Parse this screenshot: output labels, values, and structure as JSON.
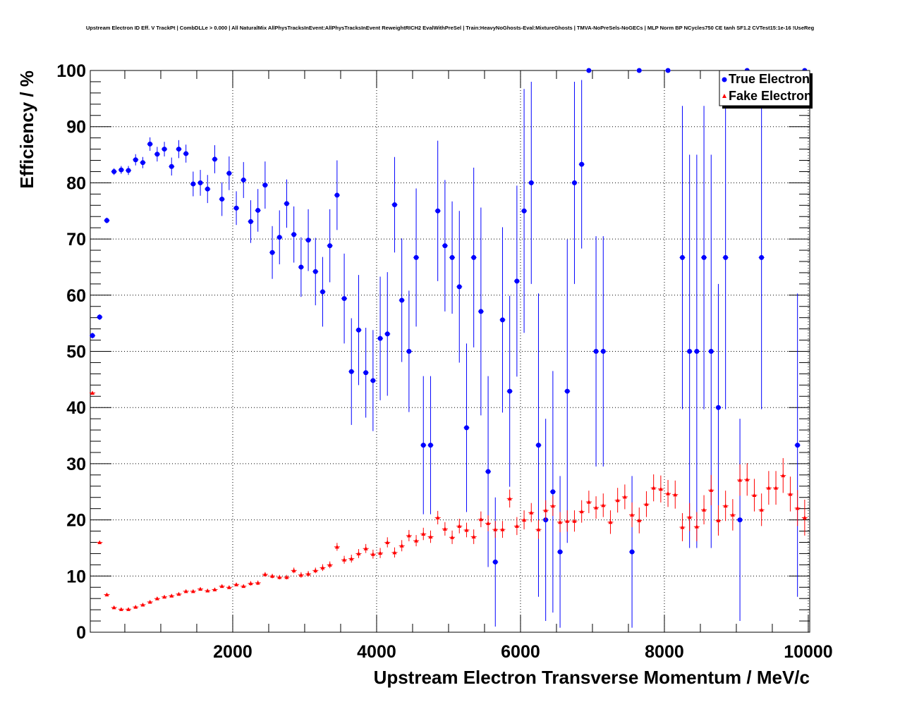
{
  "chart_data": {
    "type": "scatter",
    "title": "Upstream Electron ID Eff. V TrackPt | CombDLLe > 0.000 | All NaturalMix AllPhysTracksInEvent:AllPhysTracksInEvent ReweightRICH2 EvalWithPreSel | Train:HeavyNoGhosts-Eval:MixtureGhosts | TMVA-NoPreSels-NoGECs | MLP Norm BP NCycles750 CE tanh SF1.2 CVTest15:1e-16 !UseReg",
    "xlabel": "Upstream Electron Transverse Momentum / MeV/c",
    "ylabel": "Efficiency / %",
    "xlim": [
      20,
      10020
    ],
    "ylim": [
      0,
      100
    ],
    "xticks": [
      "2000",
      "4000",
      "6000",
      "8000",
      "10000"
    ],
    "yticks": [
      "0",
      "10",
      "20",
      "30",
      "40",
      "50",
      "60",
      "70",
      "80",
      "90",
      "100"
    ],
    "grid": true,
    "legend_position": "top-right",
    "series": [
      {
        "name": "True Electron",
        "color": "#0000ff",
        "marker": "circle",
        "x": [
          50,
          150,
          250,
          350,
          450,
          550,
          650,
          750,
          850,
          950,
          1050,
          1150,
          1250,
          1350,
          1450,
          1550,
          1650,
          1750,
          1850,
          1950,
          2050,
          2150,
          2250,
          2350,
          2450,
          2550,
          2650,
          2750,
          2850,
          2950,
          3050,
          3150,
          3250,
          3350,
          3450,
          3550,
          3650,
          3750,
          3850,
          3950,
          4050,
          4150,
          4250,
          4350,
          4450,
          4550,
          4650,
          4750,
          4850,
          4950,
          5050,
          5150,
          5250,
          5350,
          5450,
          5550,
          5650,
          5750,
          5850,
          5950,
          6050,
          6150,
          6250,
          6350,
          6450,
          6550,
          6650,
          6750,
          6850,
          6950,
          7050,
          7150,
          7550,
          7650,
          8050,
          8250,
          8350,
          8450,
          8550,
          8650,
          8750,
          8850,
          9050,
          9150,
          9350,
          9850,
          9950
        ],
        "y": [
          52.8,
          56.1,
          73.3,
          82.0,
          82.3,
          82.2,
          84.1,
          83.6,
          86.9,
          85.1,
          86.0,
          82.9,
          86.0,
          85.2,
          79.8,
          80.0,
          78.9,
          84.2,
          77.1,
          81.7,
          75.5,
          80.5,
          73.1,
          75.1,
          79.6,
          67.6,
          70.3,
          76.3,
          70.8,
          65.0,
          69.8,
          64.2,
          60.6,
          68.8,
          77.8,
          59.4,
          46.4,
          53.8,
          46.2,
          44.8,
          52.3,
          53.1,
          76.1,
          59.1,
          50.0,
          66.7,
          33.3,
          33.3,
          75.0,
          68.8,
          66.7,
          61.5,
          36.4,
          66.7,
          57.1,
          28.6,
          12.5,
          55.6,
          42.9,
          62.5,
          75.0,
          80.0,
          33.3,
          20.0,
          25.0,
          14.3,
          42.9,
          80.0,
          83.3,
          100,
          50.0,
          50.0,
          14.3,
          100,
          100,
          66.7,
          50.0,
          50.0,
          66.7,
          50.0,
          40.0,
          66.7,
          20.0,
          100,
          66.7,
          33.3,
          100
        ],
        "err": [
          0.5,
          0.5,
          0.5,
          0.6,
          0.7,
          0.8,
          1,
          1,
          1.2,
          1.3,
          1.3,
          1.6,
          1.6,
          1.6,
          2.2,
          2.3,
          2.5,
          2.5,
          3,
          3,
          3,
          3.2,
          3.8,
          3.8,
          4.2,
          4.7,
          4.8,
          4.3,
          5,
          5.3,
          5.5,
          6,
          6.2,
          6.5,
          6.2,
          8,
          9.5,
          9.8,
          8,
          9,
          11,
          11,
          8.5,
          11,
          10.8,
          12.3,
          12.3,
          12.3,
          12.5,
          11.7,
          10,
          13.5,
          15,
          16,
          18.5,
          17,
          11.5,
          16.5,
          17,
          17,
          21.7,
          18,
          27,
          18,
          21.5,
          13.5,
          27,
          18,
          15,
          0,
          20.5,
          20.5,
          13.5,
          0,
          0,
          27,
          35,
          35,
          27,
          35,
          22,
          27,
          18,
          0,
          27,
          27,
          0
        ]
      },
      {
        "name": "Fake Electron",
        "color": "#ff0000",
        "marker": "triangle",
        "x": [
          50,
          150,
          250,
          350,
          450,
          550,
          650,
          750,
          850,
          950,
          1050,
          1150,
          1250,
          1350,
          1450,
          1550,
          1650,
          1750,
          1850,
          1950,
          2050,
          2150,
          2250,
          2350,
          2450,
          2550,
          2650,
          2750,
          2850,
          2950,
          3050,
          3150,
          3250,
          3350,
          3450,
          3550,
          3650,
          3750,
          3850,
          3950,
          4050,
          4150,
          4250,
          4350,
          4450,
          4550,
          4650,
          4750,
          4850,
          4950,
          5050,
          5150,
          5250,
          5350,
          5450,
          5550,
          5650,
          5750,
          5850,
          5950,
          6050,
          6150,
          6250,
          6350,
          6450,
          6550,
          6650,
          6750,
          6850,
          6950,
          7050,
          7150,
          7250,
          7350,
          7450,
          7550,
          7650,
          7750,
          7850,
          7950,
          8050,
          8150,
          8250,
          8350,
          8450,
          8550,
          8650,
          8750,
          8850,
          8950,
          9050,
          9150,
          9250,
          9350,
          9450,
          9550,
          9650,
          9750,
          9850,
          9950
        ],
        "y": [
          42.6,
          16.0,
          6.7,
          4.4,
          4.1,
          4.1,
          4.5,
          4.9,
          5.4,
          6.0,
          6.3,
          6.5,
          6.8,
          7.3,
          7.3,
          7.7,
          7.4,
          7.6,
          8.2,
          8.0,
          8.5,
          8.2,
          8.7,
          8.8,
          10.3,
          10.0,
          9.8,
          9.8,
          11.0,
          10.2,
          10.4,
          11.0,
          11.5,
          12.0,
          15.2,
          12.9,
          13.1,
          14.0,
          14.9,
          13.9,
          14.1,
          16.0,
          14.2,
          15.4,
          17.2,
          16.3,
          17.5,
          17.0,
          20.4,
          18.4,
          16.9,
          18.9,
          18.2,
          17.0,
          20.1,
          19.4,
          18.3,
          18.3,
          23.8,
          18.9,
          20.0,
          21.3,
          18.3,
          21.7,
          22.5,
          19.6,
          19.8,
          19.8,
          21.5,
          23.2,
          22.2,
          22.6,
          19.6,
          23.5,
          24.1,
          20.9,
          19.9,
          22.8,
          25.7,
          25.5,
          24.7,
          24.5,
          18.7,
          20.5,
          18.8,
          21.8,
          25.3,
          19.9,
          22.5,
          20.9,
          27.1,
          27.2,
          24.4,
          21.8,
          25.7,
          25.7,
          27.9,
          24.6,
          22.1,
          20.4
        ],
        "err": [
          0.3,
          0.2,
          0.2,
          0.1,
          0.1,
          0.1,
          0.1,
          0.2,
          0.2,
          0.2,
          0.2,
          0.2,
          0.2,
          0.3,
          0.3,
          0.3,
          0.3,
          0.3,
          0.3,
          0.3,
          0.3,
          0.3,
          0.4,
          0.4,
          0.4,
          0.4,
          0.4,
          0.4,
          0.5,
          0.5,
          0.5,
          0.5,
          0.6,
          0.6,
          0.7,
          0.7,
          0.7,
          0.8,
          0.8,
          0.8,
          0.9,
          0.9,
          0.9,
          1.0,
          1.0,
          1.0,
          1.1,
          1.1,
          1.2,
          1.2,
          1.2,
          1.3,
          1.3,
          1.3,
          1.4,
          1.4,
          1.5,
          1.5,
          1.6,
          1.6,
          1.7,
          1.7,
          1.7,
          1.8,
          1.8,
          1.8,
          1.9,
          1.9,
          2.0,
          2.0,
          2.0,
          2.1,
          2.1,
          2.2,
          2.2,
          2.2,
          2.3,
          2.3,
          2.4,
          2.4,
          2.4,
          2.5,
          2.5,
          2.5,
          2.6,
          2.6,
          2.7,
          2.7,
          2.7,
          2.8,
          2.8,
          2.9,
          2.9,
          2.9,
          3.0,
          3.0,
          3.1,
          3.1,
          3.2,
          3.2
        ]
      }
    ]
  }
}
